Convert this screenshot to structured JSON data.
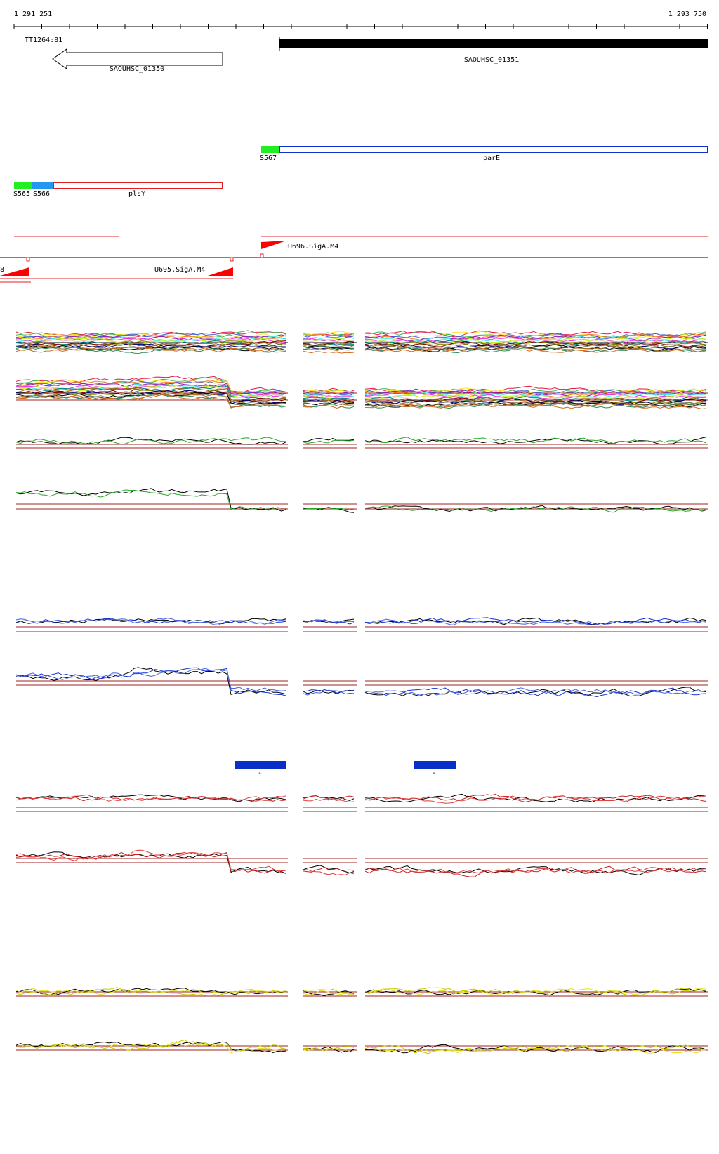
{
  "ruler": {
    "start": "1 291 251",
    "end": "1 293 750"
  },
  "features": {
    "left_marker": "TT1264:81",
    "gene_left": "SAOUHSC_01350",
    "gene_right": "SAOUHSC_01351"
  },
  "annotations": {
    "parE_site": "S567",
    "parE": "parE",
    "plsY_site_1": "S565",
    "plsY_site_2": "S566",
    "plsY": "plsY"
  },
  "promoters": {
    "right": "U696.SigA.M4",
    "left": "U695.SigA.M4",
    "edge": "8"
  },
  "regions": {
    "left_label": "-",
    "right_label": "-"
  }
}
